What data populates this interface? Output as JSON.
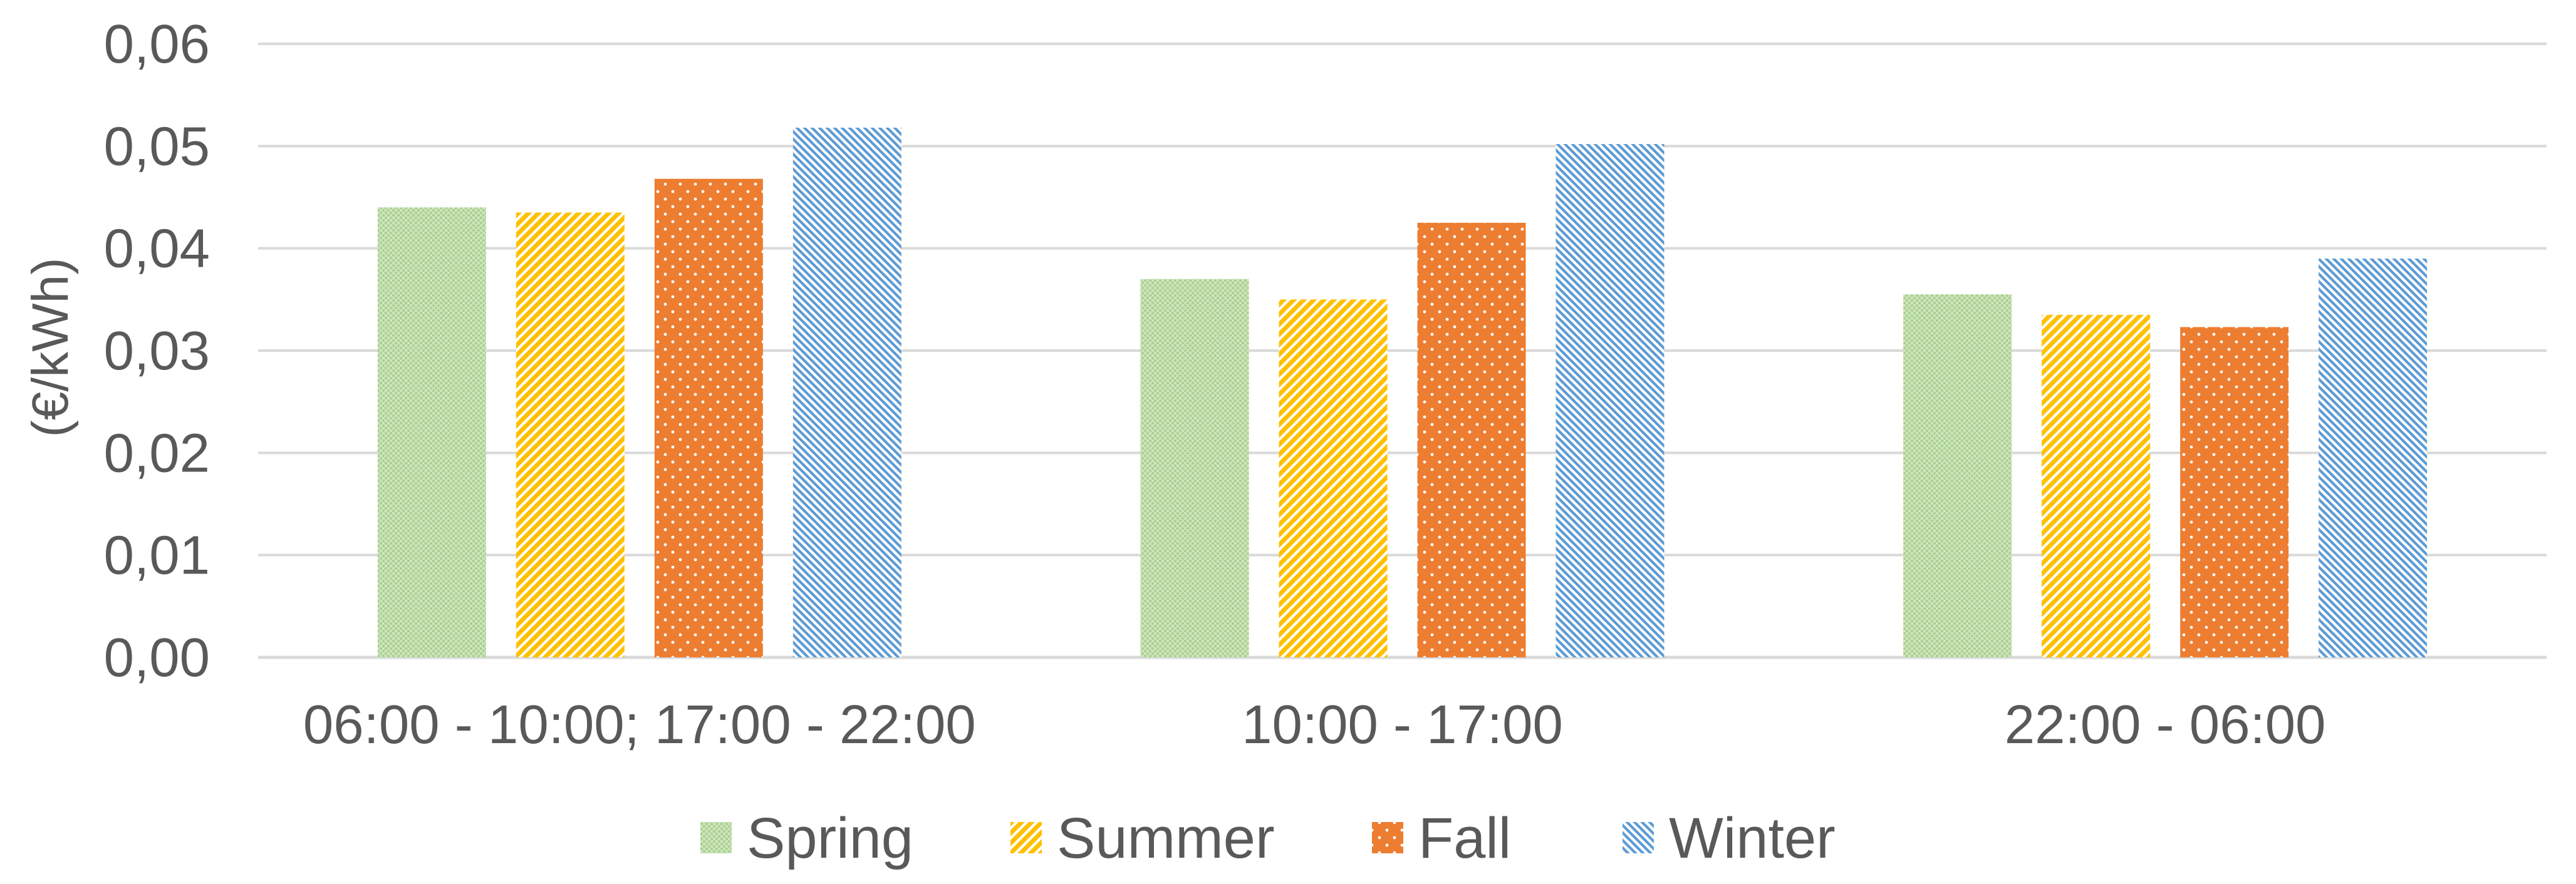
{
  "chart_data": {
    "type": "bar",
    "categories": [
      "06:00 - 10:00; 17:00 - 22:00",
      "10:00 - 17:00",
      "22:00 - 06:00"
    ],
    "series": [
      {
        "name": "Spring",
        "values": [
          0.044,
          0.037,
          0.0355
        ],
        "color": "#a9d18e",
        "pattern": "fine-grid"
      },
      {
        "name": "Summer",
        "values": [
          0.0435,
          0.035,
          0.0335
        ],
        "color": "#ffc000",
        "pattern": "wide-diagonal-up"
      },
      {
        "name": "Fall",
        "values": [
          0.0468,
          0.0425,
          0.0323
        ],
        "color": "#ed7d31",
        "pattern": "dots"
      },
      {
        "name": "Winter",
        "values": [
          0.0518,
          0.0502,
          0.039
        ],
        "color": "#5b9bd5",
        "pattern": "diagonal-down"
      }
    ],
    "title": "",
    "xlabel": "",
    "ylabel": "(€/kWh)",
    "ylim": [
      0,
      0.06
    ],
    "yticks": [
      "0,00",
      "0,01",
      "0,02",
      "0,03",
      "0,04",
      "0,05",
      "0,06"
    ],
    "grid": true,
    "legend": "bottom"
  }
}
